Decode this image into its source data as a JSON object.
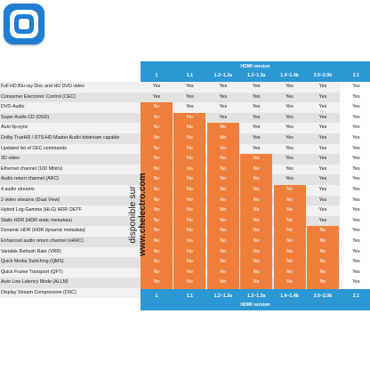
{
  "header": {
    "title": "HDMI version"
  },
  "footer": {
    "title": "HDMI version"
  },
  "versions": [
    "1",
    "1.1",
    "1.2~1.2a",
    "1.3~1.3a",
    "1.4~1.4b",
    "2.0~2.0b",
    "2.1"
  ],
  "watermark": {
    "line1": "disponible sur",
    "line2": "www.chelectro.com"
  },
  "colors": {
    "header_band": "#2b97d3",
    "no_cell": "#f07f3c",
    "row_light": "#f1f1f1",
    "row_dark": "#e2e2e2"
  },
  "rows": [
    {
      "feature": "Full HD Blu-ray Disc and HD DVD video",
      "values": [
        "Yes",
        "Yes",
        "Yes",
        "Yes",
        "Yes",
        "Yes",
        "Yes"
      ]
    },
    {
      "feature": "Consumer Electronic Control (CEC)",
      "values": [
        "Yes",
        "Yes",
        "Yes",
        "Yes",
        "Yes",
        "Yes",
        "Yes"
      ]
    },
    {
      "feature": "DVD-Audio",
      "values": [
        "No",
        "Yes",
        "Yes",
        "Yes",
        "Yes",
        "Yes",
        "Yes"
      ]
    },
    {
      "feature": "Super Audio CD (DSD)",
      "values": [
        "No",
        "No",
        "Yes",
        "Yes",
        "Yes",
        "Yes",
        "Yes"
      ]
    },
    {
      "feature": "Auto lip-sync",
      "values": [
        "No",
        "No",
        "No",
        "Yes",
        "Yes",
        "Yes",
        "Yes"
      ]
    },
    {
      "feature": "Dolby TrueHD / DTS-HD Master Audio bitstream capable",
      "values": [
        "No",
        "No",
        "No",
        "Yes",
        "Yes",
        "Yes",
        "Yes"
      ]
    },
    {
      "feature": "Updated list of CEC commands",
      "values": [
        "No",
        "No",
        "No",
        "Yes",
        "Yes",
        "Yes",
        "Yes"
      ]
    },
    {
      "feature": "3D video",
      "values": [
        "No",
        "No",
        "No",
        "No",
        "Yes",
        "Yes",
        "Yes"
      ]
    },
    {
      "feature": "Ethernet channel (100 Mbit/s)",
      "values": [
        "No",
        "No",
        "No",
        "No",
        "Yes",
        "Yes",
        "Yes"
      ]
    },
    {
      "feature": "Audio return channel (ARC)",
      "values": [
        "No",
        "No",
        "No",
        "No",
        "Yes",
        "Yes",
        "Yes"
      ]
    },
    {
      "feature": "4 audio streams",
      "values": [
        "No",
        "No",
        "No",
        "No",
        "No",
        "Yes",
        "Yes"
      ]
    },
    {
      "feature": "2 video streams (Dual View)",
      "values": [
        "No",
        "No",
        "No",
        "No",
        "No",
        "Yes",
        "Yes"
      ]
    },
    {
      "feature": "Hybrid Log-Gamma (HLG) HDR OETF",
      "values": [
        "No",
        "No",
        "No",
        "No",
        "No",
        "Yes",
        "Yes"
      ]
    },
    {
      "feature": "Static HDR (HDR static metadata)",
      "values": [
        "No",
        "No",
        "No",
        "No",
        "No",
        "Yes",
        "Yes"
      ]
    },
    {
      "feature": "Dynamic HDR (HDR dynamic metadata)",
      "values": [
        "No",
        "No",
        "No",
        "No",
        "No",
        "No",
        "Yes"
      ]
    },
    {
      "feature": "Enhanced audio return channel (eARC)",
      "values": [
        "No",
        "No",
        "No",
        "No",
        "No",
        "No",
        "Yes"
      ]
    },
    {
      "feature": "Variable Refresh Rate (VRR)",
      "values": [
        "No",
        "No",
        "No",
        "No",
        "No",
        "No",
        "Yes"
      ]
    },
    {
      "feature": "Quick Media Switching (QMS)",
      "values": [
        "No",
        "No",
        "No",
        "No",
        "No",
        "No",
        "Yes"
      ]
    },
    {
      "feature": "Quick Frame Transport (QFT)",
      "values": [
        "No",
        "No",
        "No",
        "No",
        "No",
        "No",
        "Yes"
      ]
    },
    {
      "feature": "Auto Low Latency Mode (ALLM)",
      "values": [
        "No",
        "No",
        "No",
        "No",
        "No",
        "No",
        "Yes"
      ]
    },
    {
      "feature": "Display Stream Compression (DSC)",
      "values": [
        "No",
        "No",
        "No",
        "No",
        "No",
        "No",
        "Yes"
      ]
    }
  ]
}
